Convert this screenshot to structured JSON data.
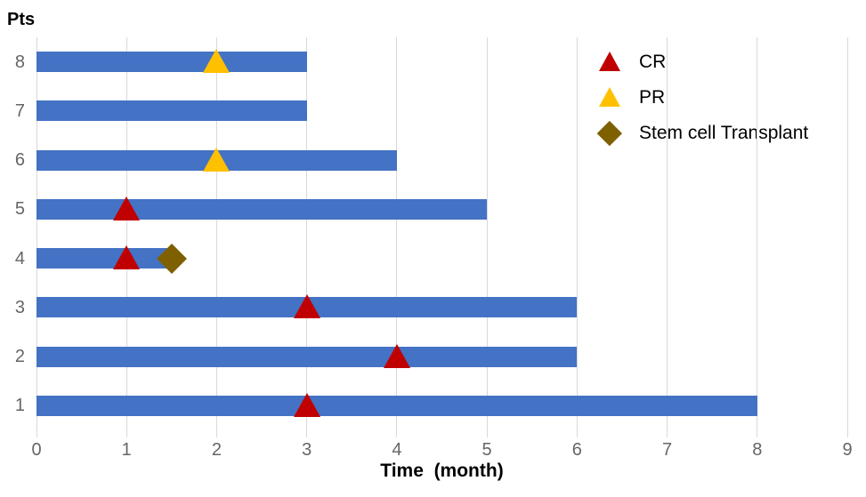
{
  "chart_data": {
    "type": "bar",
    "subtype": "swimmer-plot",
    "orientation": "horizontal",
    "ylabel": "Pts",
    "xlabel": "Time  (month)",
    "xlim": [
      0,
      9
    ],
    "xticks": [
      0,
      1,
      2,
      3,
      4,
      5,
      6,
      7,
      8,
      9
    ],
    "grid": "vertical-on",
    "categories": [
      "8",
      "7",
      "6",
      "5",
      "4",
      "3",
      "2",
      "1"
    ],
    "bars": [
      {
        "pt": "8",
        "duration": 3,
        "markers": [
          {
            "type": "PR",
            "x": 2
          }
        ]
      },
      {
        "pt": "7",
        "duration": 3,
        "markers": []
      },
      {
        "pt": "6",
        "duration": 4,
        "markers": [
          {
            "type": "PR",
            "x": 2
          }
        ]
      },
      {
        "pt": "5",
        "duration": 5,
        "markers": [
          {
            "type": "CR",
            "x": 1
          }
        ]
      },
      {
        "pt": "4",
        "duration": 1.5,
        "markers": [
          {
            "type": "CR",
            "x": 1
          },
          {
            "type": "SCT",
            "x": 1.5
          }
        ]
      },
      {
        "pt": "3",
        "duration": 6,
        "markers": [
          {
            "type": "CR",
            "x": 3
          }
        ]
      },
      {
        "pt": "2",
        "duration": 6,
        "markers": [
          {
            "type": "CR",
            "x": 4
          }
        ]
      },
      {
        "pt": "1",
        "duration": 8,
        "markers": [
          {
            "type": "CR",
            "x": 3
          }
        ]
      }
    ],
    "marker_styles": {
      "CR": {
        "shape": "triangle",
        "color": "#C00000"
      },
      "PR": {
        "shape": "triangle",
        "color": "#FFC000"
      },
      "SCT": {
        "shape": "diamond",
        "color": "#7F6000"
      }
    },
    "legend": [
      {
        "key": "CR",
        "label": "CR"
      },
      {
        "key": "PR",
        "label": "PR"
      },
      {
        "key": "SCT",
        "label": "Stem cell Transplant"
      }
    ],
    "legend_position": "upper-right",
    "colors": {
      "bar": "#4472C4",
      "grid": "#D9D9D9",
      "tick_text": "#666666",
      "title_text": "#000000"
    }
  }
}
